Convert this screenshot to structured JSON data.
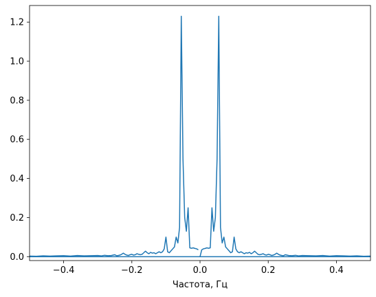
{
  "chart_data": {
    "type": "line",
    "title": "",
    "xlabel": "Частота, Гц",
    "ylabel": "",
    "xlim": [
      -0.5,
      0.5
    ],
    "ylim": [
      -0.02,
      1.285
    ],
    "grid": false,
    "series_color": "#1f77b4",
    "x_ticks": [
      -0.4,
      -0.2,
      0.0,
      0.2,
      0.4
    ],
    "x_tick_labels": [
      "−0.4",
      "−0.2",
      "0.0",
      "0.2",
      "0.4"
    ],
    "y_ticks": [
      0.0,
      0.2,
      0.4,
      0.6,
      0.8,
      1.0,
      1.2
    ],
    "y_tick_labels": [
      "0.0",
      "0.2",
      "0.4",
      "0.6",
      "0.8",
      "1.0",
      "1.2"
    ],
    "series": [
      {
        "x": [
          0.0,
          0.005,
          0.01,
          0.015,
          0.02,
          0.025,
          0.03,
          0.035,
          0.04,
          0.045,
          0.05,
          0.055,
          0.06,
          0.065,
          0.07,
          0.075,
          0.08,
          0.085,
          0.09,
          0.095,
          0.1,
          0.105,
          0.11,
          0.115,
          0.12,
          0.125,
          0.13,
          0.135,
          0.14,
          0.145,
          0.15,
          0.155,
          0.16,
          0.165,
          0.17,
          0.175,
          0.18,
          0.185,
          0.19,
          0.195,
          0.2,
          0.205,
          0.21,
          0.215,
          0.22,
          0.225,
          0.23,
          0.235,
          0.24,
          0.245,
          0.25,
          0.26,
          0.27,
          0.28,
          0.29,
          0.3,
          0.32,
          0.34,
          0.36,
          0.38,
          0.4,
          0.42,
          0.44,
          0.46,
          0.48,
          0.5
        ],
        "y": [
          0.0,
          0.035,
          0.04,
          0.042,
          0.045,
          0.043,
          0.045,
          0.25,
          0.13,
          0.2,
          0.5,
          1.23,
          0.15,
          0.07,
          0.1,
          0.05,
          0.04,
          0.03,
          0.02,
          0.025,
          0.1,
          0.04,
          0.025,
          0.02,
          0.025,
          0.02,
          0.015,
          0.02,
          0.018,
          0.022,
          0.015,
          0.02,
          0.028,
          0.02,
          0.012,
          0.01,
          0.012,
          0.015,
          0.01,
          0.008,
          0.012,
          0.01,
          0.006,
          0.008,
          0.012,
          0.018,
          0.012,
          0.008,
          0.006,
          0.005,
          0.01,
          0.006,
          0.005,
          0.007,
          0.004,
          0.006,
          0.005,
          0.004,
          0.006,
          0.003,
          0.005,
          0.004,
          0.003,
          0.004,
          0.002,
          0.003
        ]
      },
      {
        "x": [
          -0.5,
          -0.48,
          -0.46,
          -0.44,
          -0.42,
          -0.4,
          -0.38,
          -0.36,
          -0.34,
          -0.32,
          -0.3,
          -0.29,
          -0.28,
          -0.27,
          -0.26,
          -0.25,
          -0.245,
          -0.24,
          -0.235,
          -0.23,
          -0.225,
          -0.22,
          -0.215,
          -0.21,
          -0.205,
          -0.2,
          -0.195,
          -0.19,
          -0.185,
          -0.18,
          -0.175,
          -0.17,
          -0.165,
          -0.16,
          -0.155,
          -0.15,
          -0.145,
          -0.14,
          -0.135,
          -0.13,
          -0.125,
          -0.12,
          -0.115,
          -0.11,
          -0.105,
          -0.1,
          -0.095,
          -0.09,
          -0.085,
          -0.08,
          -0.075,
          -0.07,
          -0.065,
          -0.06,
          -0.055,
          -0.05,
          -0.045,
          -0.04,
          -0.035,
          -0.03,
          -0.025,
          -0.02,
          -0.015,
          -0.01,
          -0.005
        ],
        "y": [
          0.003,
          0.002,
          0.004,
          0.003,
          0.004,
          0.005,
          0.003,
          0.006,
          0.004,
          0.005,
          0.006,
          0.004,
          0.007,
          0.005,
          0.006,
          0.01,
          0.005,
          0.006,
          0.008,
          0.012,
          0.018,
          0.012,
          0.008,
          0.006,
          0.01,
          0.012,
          0.008,
          0.01,
          0.015,
          0.012,
          0.01,
          0.012,
          0.02,
          0.028,
          0.02,
          0.015,
          0.022,
          0.018,
          0.02,
          0.015,
          0.02,
          0.025,
          0.02,
          0.025,
          0.04,
          0.1,
          0.025,
          0.02,
          0.03,
          0.04,
          0.05,
          0.1,
          0.07,
          0.15,
          1.23,
          0.5,
          0.2,
          0.13,
          0.25,
          0.045,
          0.043,
          0.045,
          0.042,
          0.04,
          0.035
        ]
      }
    ],
    "hline": {
      "y": 0.0
    }
  }
}
